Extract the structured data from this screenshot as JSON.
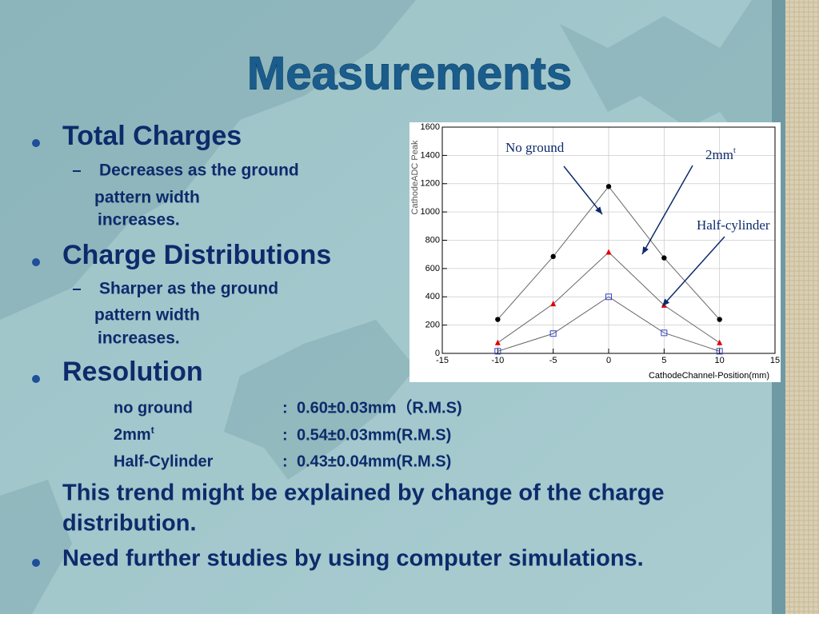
{
  "title": "Measurements",
  "bullets": [
    {
      "text": "Total Charges",
      "sub": [
        "Decreases as the ground",
        "pattern width",
        "increases."
      ]
    },
    {
      "text": "Charge Distributions",
      "sub": [
        "Sharper as the ground",
        "pattern width",
        "increases."
      ]
    },
    {
      "text": "Resolution"
    }
  ],
  "resolution": [
    {
      "label": "no ground",
      "sep": ":",
      "value": "0.60±0.03mm（R.M.S)"
    },
    {
      "label": "2mm",
      "label_sup": "t",
      "sep": ":",
      "value": "0.54±0.03mm(R.M.S)"
    },
    {
      "label": "Half-Cylinder",
      "sep": ":",
      "value": "0.43±0.04mm(R.M.S)"
    }
  ],
  "paragraph": [
    "This trend might be explained by change of the charge",
    "distribution."
  ],
  "last_bullet": "Need further studies by using computer simulations.",
  "chart_data": {
    "type": "line",
    "x_label": "CathodeChannel-Position(mm)",
    "y_label": "CathodeADC Peak",
    "x": [
      -10,
      -5,
      0,
      5,
      10
    ],
    "series": [
      {
        "name": "No ground",
        "color": "#000000",
        "marker": "circle",
        "values": [
          240,
          685,
          1180,
          675,
          240
        ]
      },
      {
        "name": "2mm",
        "name_sup": "t",
        "color": "#e00000",
        "marker": "triangle",
        "values": [
          75,
          350,
          715,
          340,
          75
        ]
      },
      {
        "name": "Half-cylinder",
        "color": "#3344cc",
        "marker": "square",
        "values": [
          15,
          140,
          400,
          145,
          15
        ]
      }
    ],
    "xlim": [
      -15,
      15
    ],
    "xticks": [
      -15,
      -10,
      -5,
      0,
      5,
      10,
      15
    ],
    "ylim": [
      0,
      1600
    ],
    "yticks": [
      0,
      200,
      400,
      600,
      800,
      1000,
      1200,
      1400,
      1600
    ],
    "grid": true
  }
}
